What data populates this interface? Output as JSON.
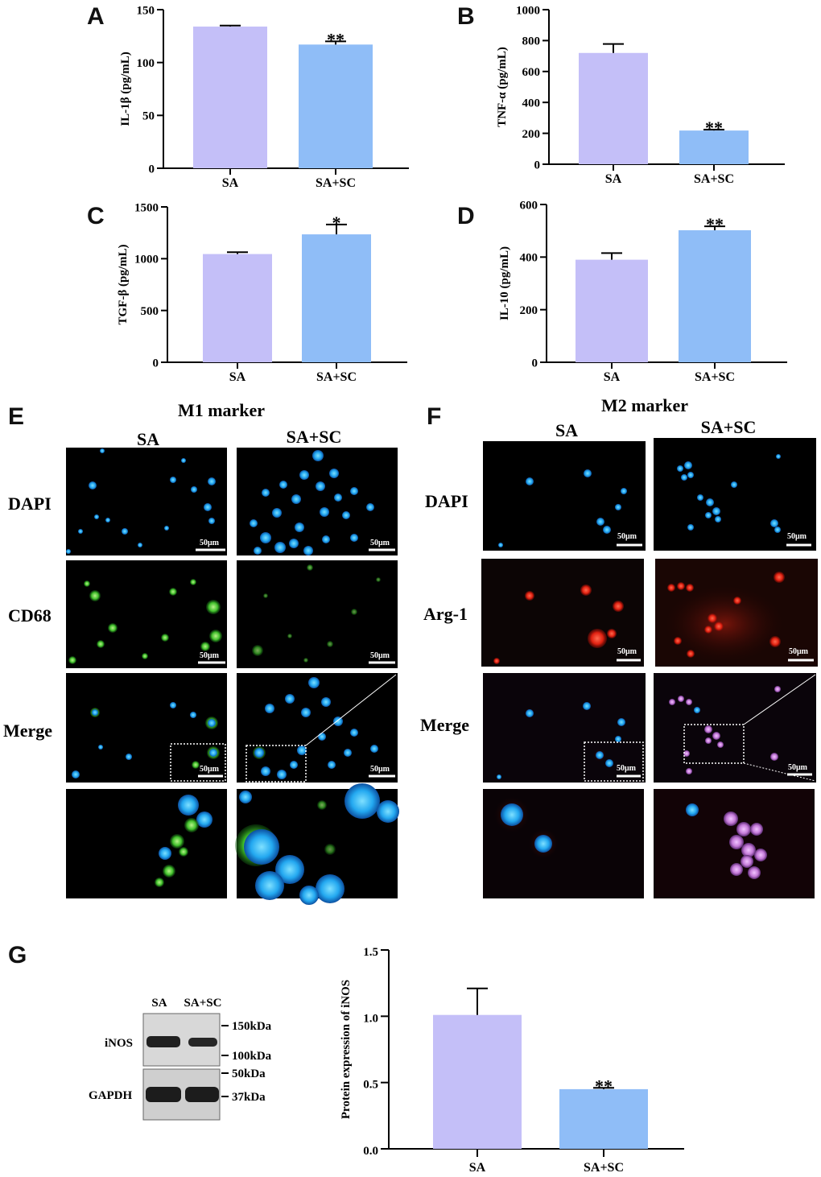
{
  "colors": {
    "SA": "#c4bff8",
    "SA+SC": "#8fbdf7"
  },
  "chart_data": [
    {
      "panel": "A",
      "type": "bar",
      "categories": [
        "SA",
        "SA+SC"
      ],
      "values": [
        134,
        117
      ],
      "errors": [
        1,
        3
      ],
      "significance": [
        "",
        "**"
      ],
      "ylabel": "IL-1β (pg/mL)",
      "ylim": [
        0,
        150
      ],
      "yticks": [
        0,
        50,
        100,
        150
      ]
    },
    {
      "panel": "B",
      "type": "bar",
      "categories": [
        "SA",
        "SA+SC"
      ],
      "values": [
        720,
        218
      ],
      "errors": [
        58,
        6
      ],
      "significance": [
        "",
        "**"
      ],
      "ylabel": "TNF-α (pg/mL)",
      "ylim": [
        0,
        1000
      ],
      "yticks": [
        0,
        200,
        400,
        600,
        800,
        1000
      ]
    },
    {
      "panel": "C",
      "type": "bar",
      "categories": [
        "SA",
        "SA+SC"
      ],
      "values": [
        1045,
        1235
      ],
      "errors": [
        18,
        95
      ],
      "significance": [
        "",
        "*"
      ],
      "ylabel": "TGF-β (pg/mL)",
      "ylim": [
        0,
        1500
      ],
      "yticks": [
        0,
        500,
        1000,
        1500
      ]
    },
    {
      "panel": "D",
      "type": "bar",
      "categories": [
        "SA",
        "SA+SC"
      ],
      "values": [
        390,
        502
      ],
      "errors": [
        25,
        15
      ],
      "significance": [
        "",
        "**"
      ],
      "ylabel": "IL-10 (pg/mL)",
      "ylim": [
        0,
        600
      ],
      "yticks": [
        0,
        200,
        400,
        600
      ]
    },
    {
      "panel": "G",
      "type": "bar",
      "categories": [
        "SA",
        "SA+SC"
      ],
      "values": [
        1.01,
        0.45
      ],
      "errors": [
        0.2,
        0.01
      ],
      "significance": [
        "",
        "**"
      ],
      "ylabel": "Protein expression of iNOS",
      "ylim": [
        0,
        1.5
      ],
      "yticks": [
        "0.0",
        "0.5",
        "1.0",
        "1.5"
      ]
    }
  ],
  "micrographs": {
    "E": {
      "letter": "E",
      "title": "M1 marker",
      "columns": [
        "SA",
        "SA+SC"
      ],
      "rows": [
        "DAPI",
        "CD68",
        "Merge"
      ]
    },
    "F": {
      "letter": "F",
      "title": "M2 marker",
      "columns": [
        "SA",
        "SA+SC"
      ],
      "rows": [
        "DAPI",
        "Arg-1",
        "Merge"
      ]
    },
    "scale_bar": "50μm"
  },
  "western_blot": {
    "letter": "G",
    "lanes": [
      "SA",
      "SA+SC"
    ],
    "bands": [
      "iNOS",
      "GAPDH"
    ],
    "markers": [
      "150kDa",
      "100kDa",
      "50kDa",
      "37kDa"
    ]
  }
}
